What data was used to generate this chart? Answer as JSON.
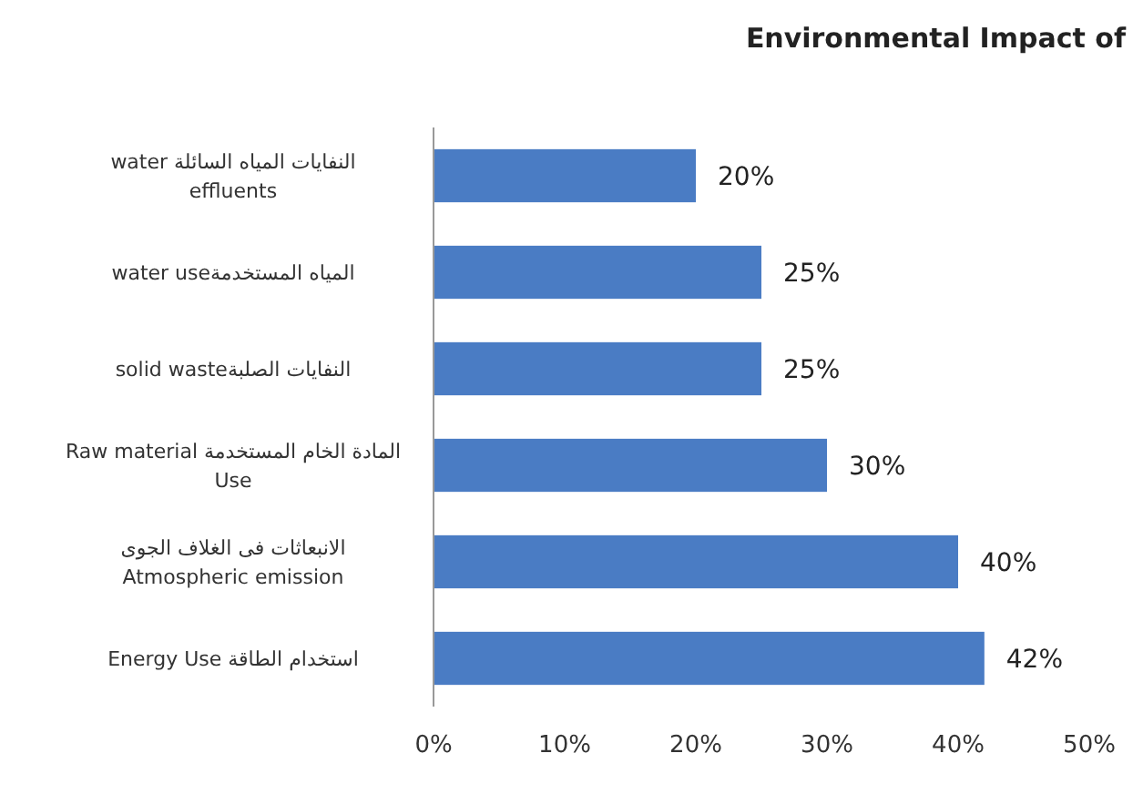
{
  "chart_data": {
    "type": "bar",
    "orientation": "horizontal",
    "title": "Environmental Impact of",
    "categories": [
      "water النفايات المياه السائلة\neffluents",
      "water useالمياه المستخدمة",
      "solid wasteالنفايات الصلبة",
      "Raw material المادة الخام المستخدمة\nUse",
      "الانبعاثات فى الغلاف الجوى\nAtmospheric emission",
      "Energy Use استخدام الطاقة"
    ],
    "series": [
      {
        "color": "#4a7cc4",
        "values": [
          20,
          25,
          25,
          30,
          40,
          42
        ],
        "value_labels": [
          "20%",
          "25%",
          "25%",
          "30%",
          "40%",
          "42%"
        ]
      }
    ],
    "xlim": [
      0,
      50
    ],
    "xticks": [
      {
        "value": 0,
        "label": "0%"
      },
      {
        "value": 10,
        "label": "10%"
      },
      {
        "value": 20,
        "label": "20%"
      },
      {
        "value": 30,
        "label": "30%"
      },
      {
        "value": 40,
        "label": "40%"
      },
      {
        "value": 50,
        "label": "50%"
      }
    ],
    "grid": false
  }
}
